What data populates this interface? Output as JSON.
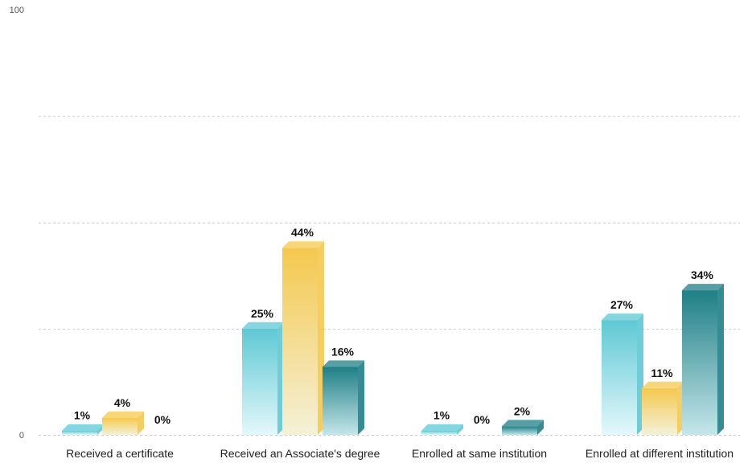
{
  "chart_data": {
    "type": "bar",
    "categories": [
      "Received a certificate",
      "Received an Associate's degree",
      "Enrolled at same institution",
      "Enrolled at different institution"
    ],
    "series": [
      {
        "values": [
          1,
          25,
          1,
          27
        ],
        "labels": [
          "1%",
          "25%",
          "1%",
          "27%"
        ],
        "color": "#5ec8d4"
      },
      {
        "values": [
          4,
          44,
          0,
          11
        ],
        "labels": [
          "4%",
          "44%",
          "0%",
          "11%"
        ],
        "color": "#f5c84e"
      },
      {
        "values": [
          0,
          16,
          2,
          34
        ],
        "labels": [
          "0%",
          "16%",
          "2%",
          "34%"
        ],
        "color": "#1f7f86"
      }
    ],
    "ylim": [
      0,
      100
    ],
    "y_ticks": [
      "0",
      "100"
    ],
    "grid": true
  }
}
